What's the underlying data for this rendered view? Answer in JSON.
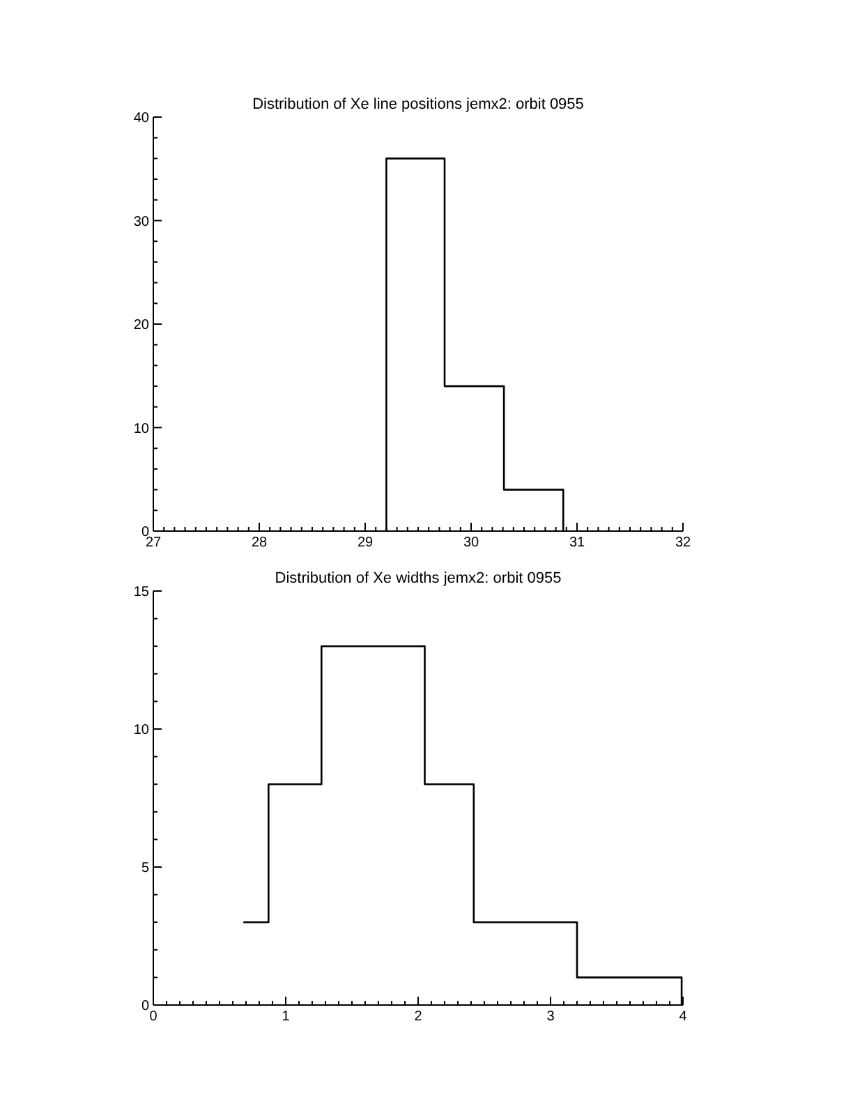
{
  "chart_data": [
    {
      "type": "step",
      "title": "Distribution of Xe line positions jemx2: orbit 0955",
      "x": [
        29.2,
        29.2,
        29.75,
        30.31,
        30.87
      ],
      "values": [
        0,
        36,
        14,
        4,
        0
      ],
      "color": "#000000",
      "xlim": [
        27,
        32
      ],
      "xticks": [
        27,
        {
          "value": 27.1,
          "label": null
        },
        {
          "value": 27.2,
          "label": null
        },
        {
          "value": 27.3,
          "label": null
        },
        {
          "value": 27.4,
          "label": null
        },
        {
          "value": 27.5,
          "label": null
        },
        {
          "value": 27.6,
          "label": null
        },
        {
          "value": 27.7,
          "label": null
        },
        {
          "value": 27.8,
          "label": null
        },
        {
          "value": 27.9,
          "label": null
        },
        28,
        {
          "value": 28.1,
          "label": null
        },
        {
          "value": 28.2,
          "label": null
        },
        {
          "value": 28.3,
          "label": null
        },
        {
          "value": 28.4,
          "label": null
        },
        {
          "value": 28.5,
          "label": null
        },
        {
          "value": 28.6,
          "label": null
        },
        {
          "value": 28.7,
          "label": null
        },
        {
          "value": 28.8,
          "label": null
        },
        {
          "value": 28.9,
          "label": null
        },
        29,
        {
          "value": 29.1,
          "label": null
        },
        {
          "value": 29.2,
          "label": null
        },
        {
          "value": 29.3,
          "label": null
        },
        {
          "value": 29.4,
          "label": null
        },
        {
          "value": 29.5,
          "label": null
        },
        {
          "value": 29.6,
          "label": null
        },
        {
          "value": 29.7,
          "label": null
        },
        {
          "value": 29.8,
          "label": null
        },
        {
          "value": 29.9,
          "label": null
        },
        30,
        {
          "value": 30.1,
          "label": null
        },
        {
          "value": 30.2,
          "label": null
        },
        {
          "value": 30.3,
          "label": null
        },
        {
          "value": 30.4,
          "label": null
        },
        {
          "value": 30.5,
          "label": null
        },
        {
          "value": 30.6,
          "label": null
        },
        {
          "value": 30.7,
          "label": null
        },
        {
          "value": 30.8,
          "label": null
        },
        {
          "value": 30.9,
          "label": null
        },
        31,
        {
          "value": 31.1,
          "label": null
        },
        {
          "value": 31.2,
          "label": null
        },
        {
          "value": 31.3,
          "label": null
        },
        {
          "value": 31.4,
          "label": null
        },
        {
          "value": 31.5,
          "label": null
        },
        {
          "value": 31.6,
          "label": null
        },
        {
          "value": 31.7,
          "label": null
        },
        {
          "value": 31.8,
          "label": null
        },
        {
          "value": 31.9,
          "label": null
        },
        32
      ],
      "ylim": [
        0,
        40
      ],
      "yticks": [
        0,
        {
          "value": 2,
          "label": null
        },
        {
          "value": 4,
          "label": null
        },
        {
          "value": 6,
          "label": null
        },
        {
          "value": 8,
          "label": null
        },
        10,
        {
          "value": 12,
          "label": null
        },
        {
          "value": 14,
          "label": null
        },
        {
          "value": 16,
          "label": null
        },
        {
          "value": 18,
          "label": null
        },
        20,
        {
          "value": 22,
          "label": null
        },
        {
          "value": 24,
          "label": null
        },
        {
          "value": 26,
          "label": null
        },
        {
          "value": 28,
          "label": null
        },
        30,
        {
          "value": 32,
          "label": null
        },
        {
          "value": 34,
          "label": null
        },
        {
          "value": 36,
          "label": null
        },
        {
          "value": 38,
          "label": null
        },
        40
      ]
    },
    {
      "type": "step",
      "title": "Distribution of Xe widths jemx2: orbit 0955",
      "x": [
        0.68,
        0.87,
        1.27,
        2.05,
        2.42,
        3.2,
        3.99
      ],
      "values": [
        3,
        8,
        13,
        8,
        3,
        1,
        0
      ],
      "color": "#000000",
      "xlim": [
        0,
        4
      ],
      "xticks": [
        0,
        {
          "value": 0.1,
          "label": null
        },
        {
          "value": 0.2,
          "label": null
        },
        {
          "value": 0.3,
          "label": null
        },
        {
          "value": 0.4,
          "label": null
        },
        {
          "value": 0.5,
          "label": null
        },
        {
          "value": 0.6,
          "label": null
        },
        {
          "value": 0.7,
          "label": null
        },
        {
          "value": 0.8,
          "label": null
        },
        {
          "value": 0.9,
          "label": null
        },
        1,
        {
          "value": 1.1,
          "label": null
        },
        {
          "value": 1.2,
          "label": null
        },
        {
          "value": 1.3,
          "label": null
        },
        {
          "value": 1.4,
          "label": null
        },
        {
          "value": 1.5,
          "label": null
        },
        {
          "value": 1.6,
          "label": null
        },
        {
          "value": 1.7,
          "label": null
        },
        {
          "value": 1.8,
          "label": null
        },
        {
          "value": 1.9,
          "label": null
        },
        2,
        {
          "value": 2.1,
          "label": null
        },
        {
          "value": 2.2,
          "label": null
        },
        {
          "value": 2.3,
          "label": null
        },
        {
          "value": 2.4,
          "label": null
        },
        {
          "value": 2.5,
          "label": null
        },
        {
          "value": 2.6,
          "label": null
        },
        {
          "value": 2.7,
          "label": null
        },
        {
          "value": 2.8,
          "label": null
        },
        {
          "value": 2.9,
          "label": null
        },
        3,
        {
          "value": 3.1,
          "label": null
        },
        {
          "value": 3.2,
          "label": null
        },
        {
          "value": 3.3,
          "label": null
        },
        {
          "value": 3.4,
          "label": null
        },
        {
          "value": 3.5,
          "label": null
        },
        {
          "value": 3.6,
          "label": null
        },
        {
          "value": 3.7,
          "label": null
        },
        {
          "value": 3.8,
          "label": null
        },
        {
          "value": 3.9,
          "label": null
        },
        4
      ],
      "ylim": [
        0,
        15
      ],
      "yticks": [
        0,
        {
          "value": 1,
          "label": null
        },
        {
          "value": 2,
          "label": null
        },
        {
          "value": 3,
          "label": null
        },
        {
          "value": 4,
          "label": null
        },
        5,
        {
          "value": 6,
          "label": null
        },
        {
          "value": 7,
          "label": null
        },
        {
          "value": 8,
          "label": null
        },
        {
          "value": 9,
          "label": null
        },
        10,
        {
          "value": 11,
          "label": null
        },
        {
          "value": 12,
          "label": null
        },
        {
          "value": 13,
          "label": null
        },
        {
          "value": 14,
          "label": null
        },
        15
      ]
    }
  ]
}
